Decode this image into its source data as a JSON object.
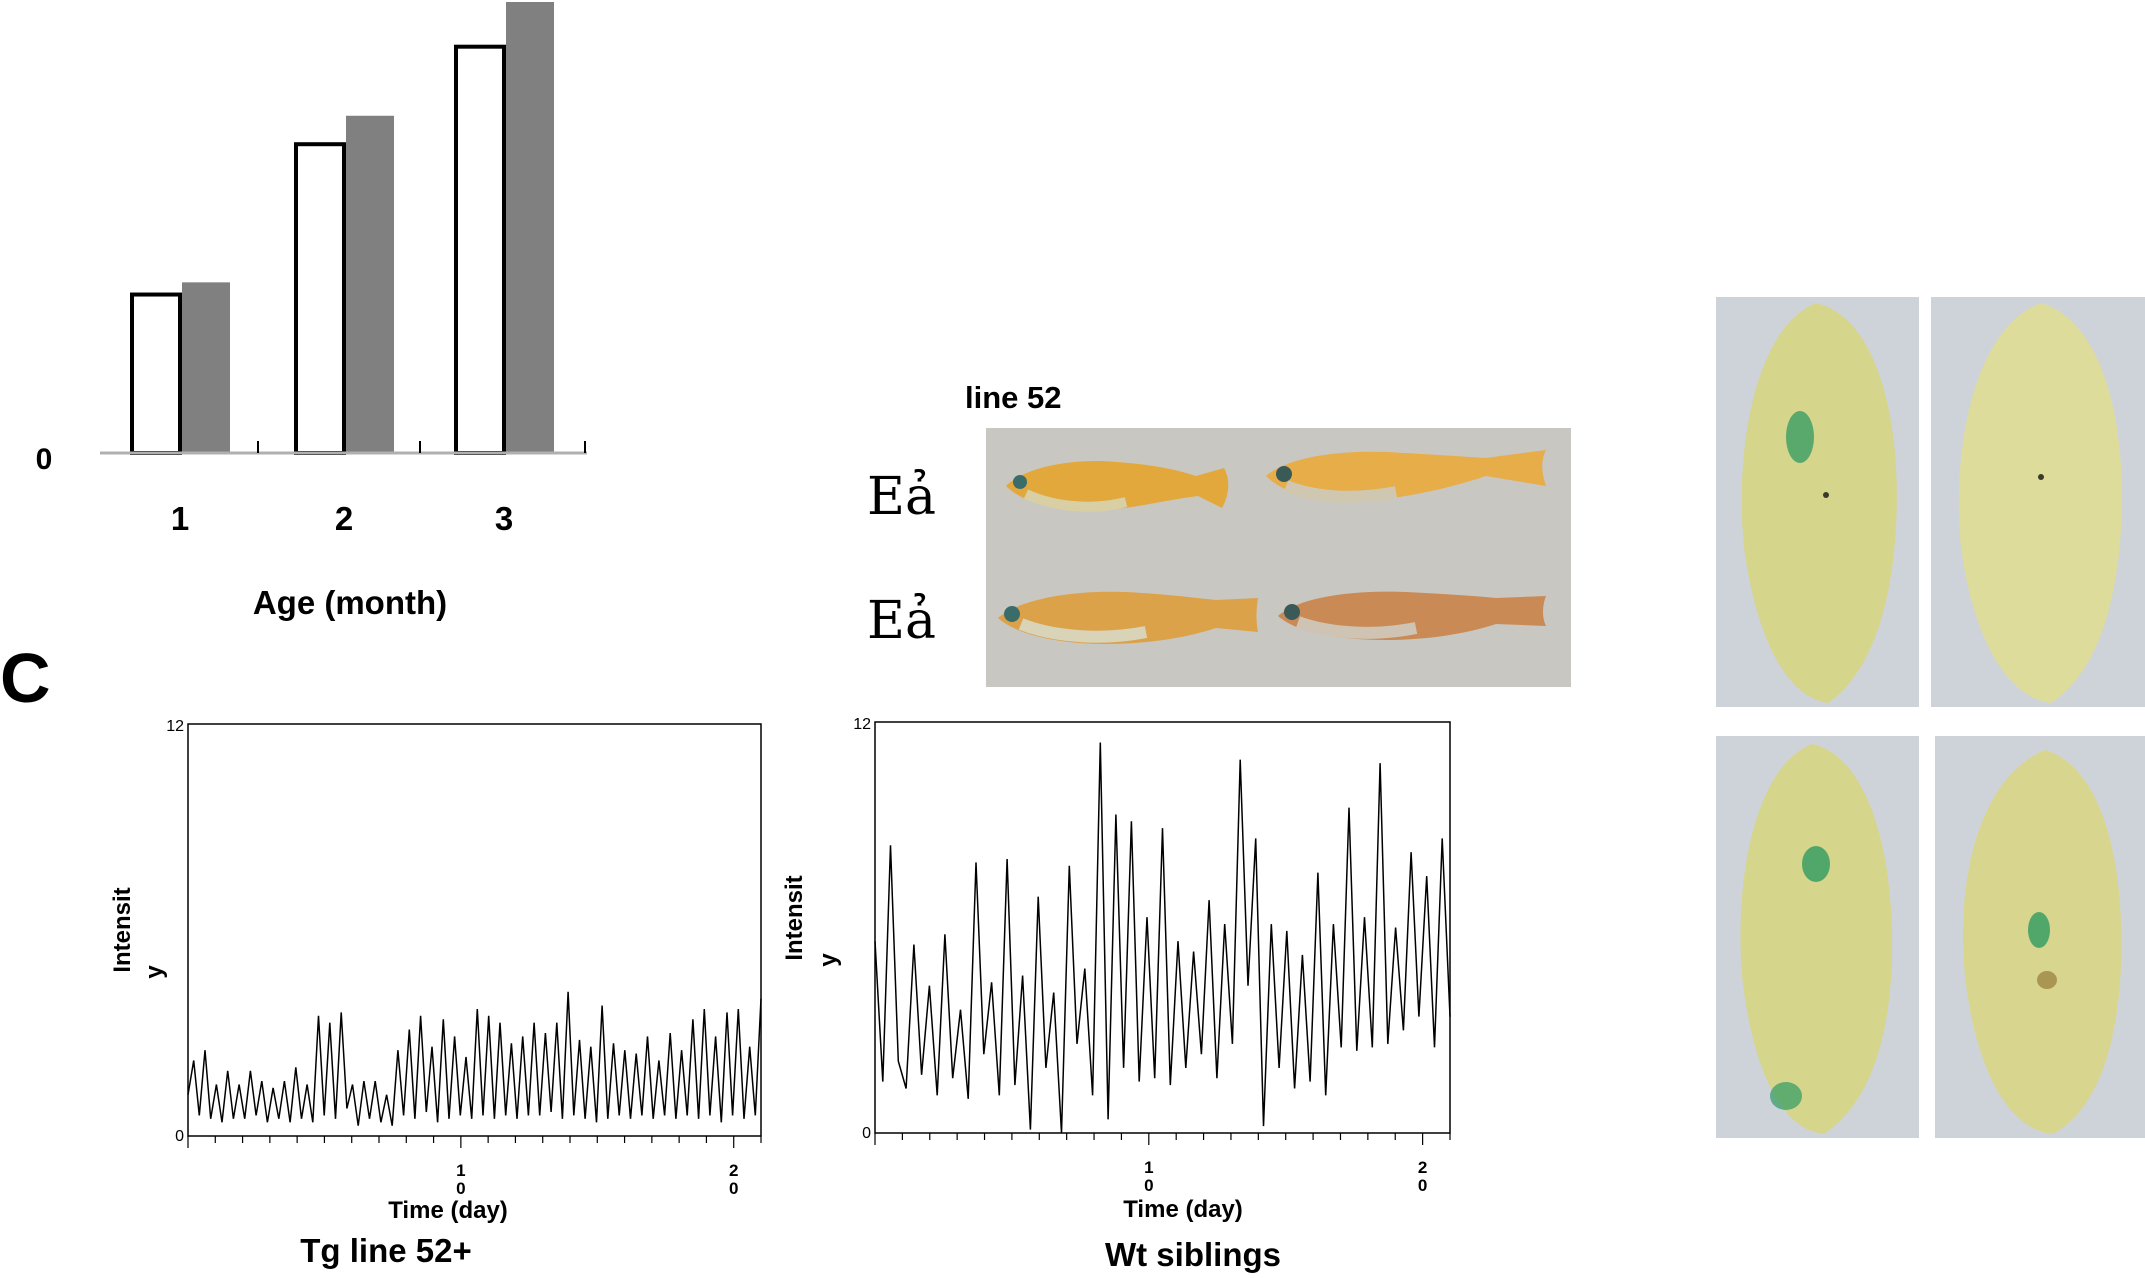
{
  "panel_label_c": "C",
  "chart_data": [
    {
      "type": "bar",
      "categories": [
        "1",
        "2",
        "3"
      ],
      "series": [
        {
          "values": [
            3.9,
            7.6,
            10.0
          ],
          "style": "outline"
        },
        {
          "values": [
            4.2,
            8.3,
            11.1
          ],
          "style": "filled"
        }
      ],
      "y_tick_labels": [
        "0"
      ],
      "xlabel": "Age (month)",
      "ylim": [
        0,
        11.1
      ],
      "colors": {
        "outline_fill": "#ffffff",
        "outline_stroke": "#000000",
        "filled": "#808080",
        "axis": "#b0b0b0"
      }
    },
    {
      "type": "line",
      "title": "Tg line 52+",
      "xlabel": "Time (day)",
      "ylabel_line1": "Intensit",
      "ylabel_line2": "y",
      "y_ticks": [
        "0",
        "12"
      ],
      "x_ticks": [
        {
          "value": 10,
          "line1": "1",
          "line2": "0"
        },
        {
          "value": 20,
          "line2": "0",
          "line1": "2"
        }
      ],
      "ylim": [
        0,
        12
      ],
      "xlim": [
        0,
        21
      ],
      "peak_period_days": 1,
      "baseline": 0.5,
      "values": [
        1.2,
        2.2,
        0.6,
        2.5,
        0.5,
        1.5,
        0.4,
        1.9,
        0.5,
        1.5,
        0.5,
        1.9,
        0.6,
        1.6,
        0.4,
        1.4,
        0.5,
        1.6,
        0.4,
        2.0,
        0.5,
        1.5,
        0.4,
        3.5,
        0.6,
        3.3,
        0.5,
        3.6,
        0.8,
        1.5,
        0.3,
        1.6,
        0.5,
        1.6,
        0.4,
        1.2,
        0.3,
        2.5,
        0.6,
        3.1,
        0.5,
        3.5,
        0.7,
        2.6,
        0.4,
        3.4,
        0.5,
        2.9,
        0.6,
        2.3,
        0.5,
        3.7,
        0.6,
        3.5,
        0.5,
        3.3,
        0.6,
        2.7,
        0.5,
        2.9,
        0.6,
        3.3,
        0.6,
        3.0,
        0.7,
        3.3,
        0.5,
        4.2,
        0.6,
        2.8,
        0.5,
        2.6,
        0.4,
        3.8,
        0.5,
        2.7,
        0.6,
        2.5,
        0.5,
        2.4,
        0.6,
        2.9,
        0.5,
        2.2,
        0.6,
        3.0,
        0.5,
        2.5,
        0.6,
        3.4,
        0.5,
        3.7,
        0.6,
        2.9,
        0.4,
        3.6,
        0.6,
        3.7,
        0.5,
        2.6,
        0.6,
        4.0
      ]
    },
    {
      "type": "line",
      "title": "Wt siblings",
      "xlabel": "Time (day)",
      "ylabel_line1": "Intensit",
      "ylabel_line2": "y",
      "y_ticks": [
        "0",
        "12"
      ],
      "x_ticks": [
        {
          "value": 10,
          "line1": "1",
          "line2": "0"
        },
        {
          "value": 20,
          "line1": "2",
          "line2": "0"
        }
      ],
      "ylim": [
        0,
        12
      ],
      "xlim": [
        0,
        21
      ],
      "values": [
        5.6,
        1.5,
        8.4,
        2.1,
        1.3,
        5.5,
        1.7,
        4.3,
        1.1,
        5.8,
        1.6,
        3.6,
        1.0,
        7.9,
        2.3,
        4.4,
        1.1,
        8.0,
        1.4,
        4.6,
        0.1,
        6.9,
        1.9,
        4.1,
        0.0,
        7.8,
        2.6,
        4.8,
        1.1,
        11.4,
        0.4,
        9.3,
        1.9,
        9.1,
        1.5,
        6.3,
        1.6,
        8.9,
        1.4,
        5.6,
        1.9,
        5.3,
        2.3,
        6.8,
        1.6,
        6.1,
        2.6,
        10.9,
        4.3,
        8.6,
        0.2,
        6.1,
        1.9,
        5.9,
        1.3,
        5.2,
        1.5,
        7.6,
        1.1,
        6.1,
        2.5,
        9.5,
        2.4,
        6.3,
        2.5,
        10.8,
        2.6,
        6.0,
        3.0,
        8.2,
        3.4,
        7.5,
        2.5,
        8.6,
        3.4
      ]
    }
  ],
  "photo_panel": {
    "title": "line 52",
    "row_labels": [
      "Eả",
      "Eả"
    ],
    "colors": {
      "background": "#c9c7c2",
      "fish_body": "#e3a83b",
      "fish_belly": "#d9cfa4"
    }
  },
  "tissue_panel": {
    "colors": {
      "background": "#ced3d9",
      "tissue": "#d6d58c",
      "stain": "#2f9a62"
    }
  }
}
